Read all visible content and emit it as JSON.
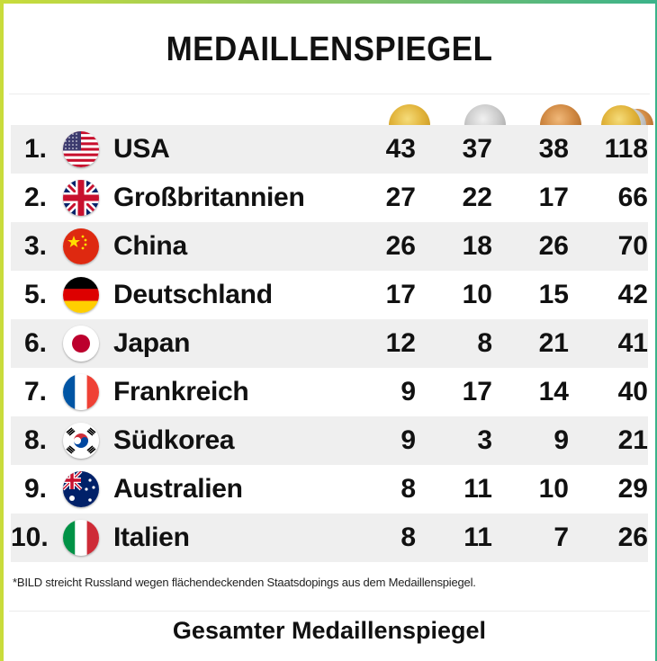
{
  "title": "MEDAILLENSPIEGEL",
  "columns": {
    "gold": "gold-medal-icon",
    "silver": "silver-medal-icon",
    "bronze": "bronze-medal-icon",
    "total": "medal-stack-icon"
  },
  "rows": [
    {
      "rank": "1.",
      "country": "USA",
      "flag": "flag-usa",
      "gold": "43",
      "silver": "37",
      "bronze": "38",
      "total": "118"
    },
    {
      "rank": "2.",
      "country": "Großbritannien",
      "flag": "flag-uk",
      "gold": "27",
      "silver": "22",
      "bronze": "17",
      "total": "66"
    },
    {
      "rank": "3.",
      "country": "China",
      "flag": "flag-china",
      "gold": "26",
      "silver": "18",
      "bronze": "26",
      "total": "70"
    },
    {
      "rank": "5.",
      "country": "Deutschland",
      "flag": "flag-germany",
      "gold": "17",
      "silver": "10",
      "bronze": "15",
      "total": "42"
    },
    {
      "rank": "6.",
      "country": "Japan",
      "flag": "flag-japan",
      "gold": "12",
      "silver": "8",
      "bronze": "21",
      "total": "41"
    },
    {
      "rank": "7.",
      "country": "Frankreich",
      "flag": "flag-france",
      "gold": "9",
      "silver": "17",
      "bronze": "14",
      "total": "40"
    },
    {
      "rank": "8.",
      "country": "Südkorea",
      "flag": "flag-south-korea",
      "gold": "9",
      "silver": "3",
      "bronze": "9",
      "total": "21"
    },
    {
      "rank": "9.",
      "country": "Australien",
      "flag": "flag-australia",
      "gold": "8",
      "silver": "11",
      "bronze": "10",
      "total": "29"
    },
    {
      "rank": "10.",
      "country": "Italien",
      "flag": "flag-italy",
      "gold": "8",
      "silver": "11",
      "bronze": "7",
      "total": "26"
    }
  ],
  "footnote": "*BILD streicht Russland wegen flächendeckenden Staatsdopings aus dem Medaillenspiegel.",
  "link_label": "Gesamter Medaillenspiegel",
  "colors": {
    "frame_accent": "#c5dc3a",
    "row_shade": "#efefef",
    "gold": "#e2b53d",
    "silver": "#cdcdcd",
    "bronze": "#d18a44"
  }
}
